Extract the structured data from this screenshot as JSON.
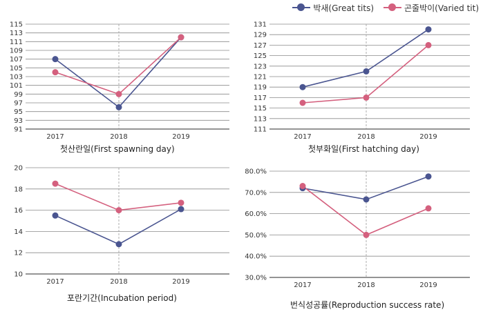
{
  "legend": [
    {
      "name": "박새(Great tits)",
      "color": "#4a5590"
    },
    {
      "name": "곤줄박이(Varied tit)",
      "color": "#d4607e"
    }
  ],
  "chart_data": [
    {
      "type": "line",
      "title": "첫산란일(First spawning day)",
      "categories": [
        "2017",
        "2018",
        "2019"
      ],
      "ylim": [
        91,
        115
      ],
      "yticks": [
        "91",
        "93",
        "95",
        "97",
        "99",
        "101",
        "103",
        "105",
        "107",
        "109",
        "111",
        "113",
        "115"
      ],
      "series": [
        {
          "name": "박새(Great tits)",
          "values": [
            107,
            96,
            112
          ]
        },
        {
          "name": "곤줄박이(Varied tit)",
          "values": [
            104,
            99,
            112
          ]
        }
      ],
      "grid": true
    },
    {
      "type": "line",
      "title": "첫부화일(First hatching day)",
      "categories": [
        "2017",
        "2018",
        "2019"
      ],
      "ylim": [
        111,
        131
      ],
      "yticks": [
        "111",
        "113",
        "115",
        "117",
        "119",
        "121",
        "123",
        "125",
        "127",
        "129",
        "131"
      ],
      "series": [
        {
          "name": "박새(Great tits)",
          "values": [
            119,
            122,
            130
          ]
        },
        {
          "name": "곤줄박이(Varied tit)",
          "values": [
            116,
            117,
            127
          ]
        }
      ],
      "grid": true
    },
    {
      "type": "line",
      "title": "포란기간(Incubation period)",
      "categories": [
        "2017",
        "2018",
        "2019"
      ],
      "ylim": [
        10,
        20
      ],
      "yticks": [
        "10",
        "12",
        "14",
        "16",
        "18",
        "20"
      ],
      "series": [
        {
          "name": "박새(Great tits)",
          "values": [
            15.5,
            12.8,
            16.1
          ]
        },
        {
          "name": "곤줄박이(Varied tit)",
          "values": [
            18.5,
            16.0,
            16.7
          ]
        }
      ],
      "grid": true
    },
    {
      "type": "line",
      "title": "번식성공률(Reproduction success rate)",
      "categories": [
        "2017",
        "2018",
        "2019"
      ],
      "ylim": [
        30,
        80
      ],
      "yticks": [
        "30.0%",
        "40.0%",
        "50.0%",
        "60.0%",
        "70.0%",
        "80.0%"
      ],
      "series": [
        {
          "name": "박새(Great tits)",
          "values": [
            72,
            66.7,
            77.5
          ]
        },
        {
          "name": "곤줄박이(Varied tit)",
          "values": [
            73,
            50,
            62.5
          ]
        }
      ],
      "grid": true
    }
  ]
}
